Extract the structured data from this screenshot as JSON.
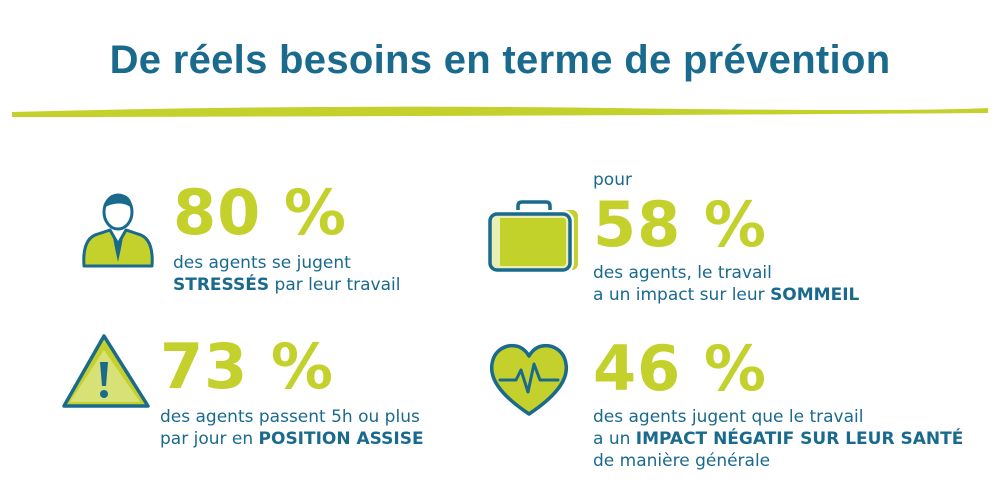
{
  "title": "De réels besoins en terme de prévention",
  "colors": {
    "blue": "#1a6a8e",
    "lime": "#c4d12c"
  },
  "stats": [
    {
      "icon": "person-icon",
      "value": "80 %",
      "line1": "des agents se jugent",
      "line2_bold": "STRESSÉS",
      "line2_rest": " par leur travail"
    },
    {
      "icon": "briefcase-icon",
      "prefix": "pour",
      "value": "58 %",
      "line1": "des agents, le travail",
      "line2_rest": "a un impact sur leur ",
      "line2_bold": "SOMMEIL"
    },
    {
      "icon": "warning-icon",
      "value": "73 %",
      "line1": "des agents passent 5h ou plus",
      "line2_rest": "par jour en ",
      "line2_bold": "POSITION ASSISE"
    },
    {
      "icon": "heart-pulse-icon",
      "value": "46 %",
      "line1": "des agents jugent que le travail",
      "line2_rest": "a un ",
      "line2_bold": "IMPACT NÉGATIF SUR LEUR SANTÉ",
      "line3": "de manière générale"
    }
  ]
}
